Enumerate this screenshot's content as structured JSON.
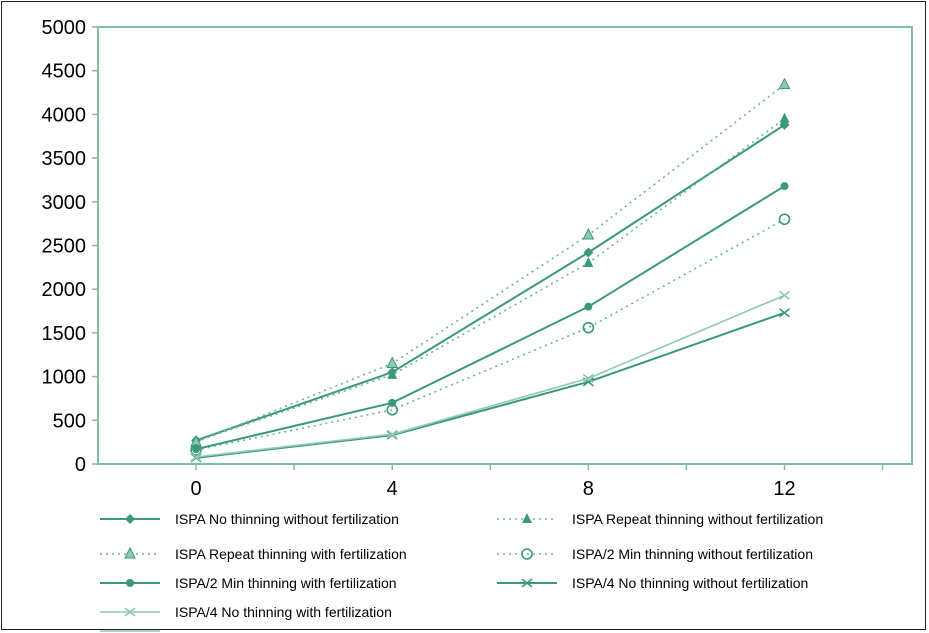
{
  "chart_data": {
    "type": "line",
    "title": "",
    "xlabel": "",
    "ylabel": "",
    "x": [
      0,
      4,
      8,
      12
    ],
    "xlim": [
      -2,
      14.6
    ],
    "ylim": [
      0,
      5000
    ],
    "x_ticks": [
      "0",
      "4",
      "8",
      "12"
    ],
    "y_ticks": [
      "0",
      "500",
      "1000",
      "1500",
      "2000",
      "2500",
      "3000",
      "3500",
      "4000",
      "4500",
      "5000"
    ],
    "grid": false,
    "legend_position": "bottom",
    "series": [
      {
        "name": "ISPA No thinning without fertilization",
        "values": [
          270,
          1050,
          2420,
          3880
        ],
        "style": "solid",
        "marker": "diamond"
      },
      {
        "name": "ISPA Repeat thinning without fertilization",
        "values": [
          260,
          1020,
          2300,
          3950
        ],
        "style": "dotted",
        "marker": "triangle"
      },
      {
        "name": "ISPA Repeat thinning with fertilization",
        "values": [
          250,
          1150,
          2620,
          4340
        ],
        "style": "dotted",
        "marker": "triangle-open"
      },
      {
        "name": "ISPA/2 Min thinning without fertilization",
        "values": [
          160,
          620,
          1560,
          2800
        ],
        "style": "dotted",
        "marker": "circle-open"
      },
      {
        "name": "ISPA/2 Min thinning with fertilization",
        "values": [
          170,
          700,
          1800,
          3180
        ],
        "style": "solid",
        "marker": "circle"
      },
      {
        "name": "ISPA/4 No thinning without fertilization",
        "values": [
          70,
          330,
          940,
          1730
        ],
        "style": "solid",
        "marker": "x"
      },
      {
        "name": "ISPA/4 No thinning with fertilization",
        "values": [
          80,
          340,
          980,
          1930
        ],
        "style": "solid-light",
        "marker": "x"
      }
    ],
    "colors": {
      "line_dark": "#3a9a78",
      "line_light": "#8fc9b1",
      "dotted": "#6db496",
      "axis": "#7fbf9f",
      "frame": "#222222"
    }
  }
}
